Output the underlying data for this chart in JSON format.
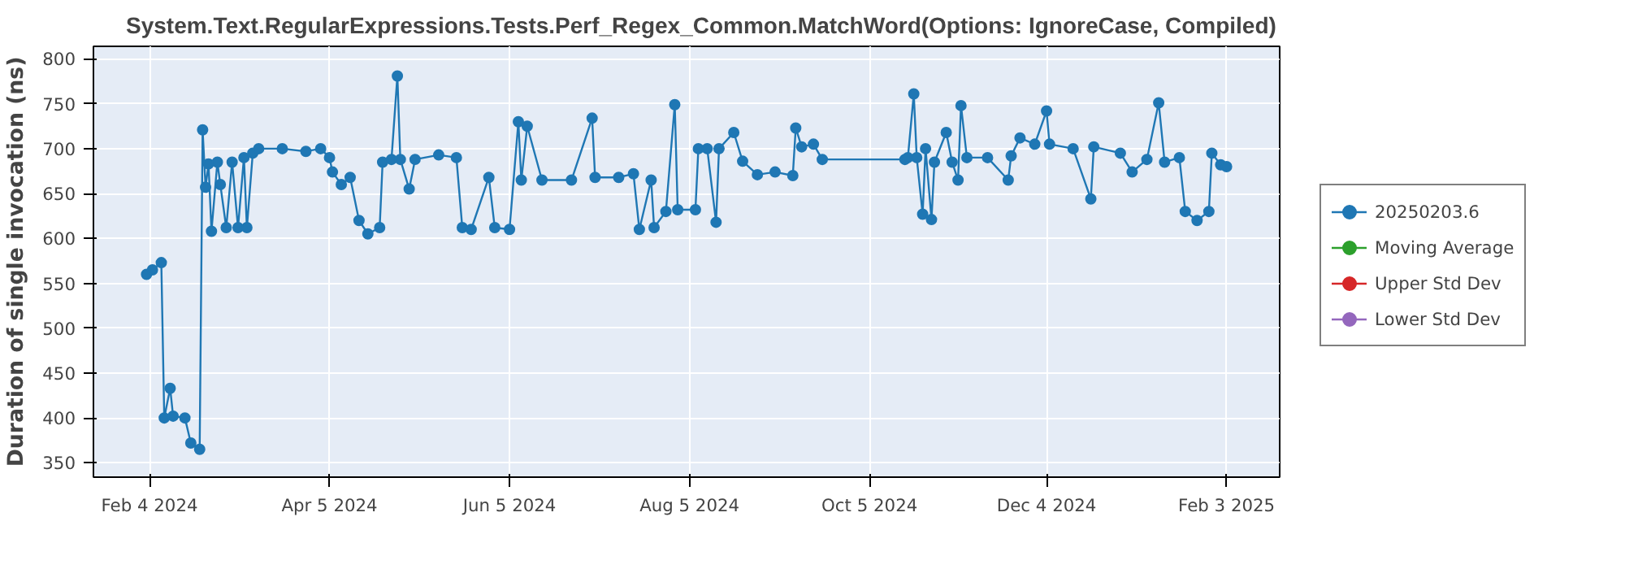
{
  "chart_data": {
    "type": "line",
    "title": "System.Text.RegularExpressions.Tests.Perf_Regex_Common.MatchWord(Options: IgnoreCase, Compiled)",
    "ylabel": "Duration of single invocation (ns)",
    "x": [
      "2024-02-03",
      "2024-02-05",
      "2024-02-08",
      "2024-02-09",
      "2024-02-11",
      "2024-02-12",
      "2024-02-16",
      "2024-02-18",
      "2024-02-21",
      "2024-02-22",
      "2024-02-23",
      "2024-02-24",
      "2024-02-25",
      "2024-02-27",
      "2024-02-28",
      "2024-03-01",
      "2024-03-03",
      "2024-03-05",
      "2024-03-07",
      "2024-03-08",
      "2024-03-10",
      "2024-03-12",
      "2024-03-20",
      "2024-03-28",
      "2024-04-02",
      "2024-04-05",
      "2024-04-06",
      "2024-04-09",
      "2024-04-12",
      "2024-04-15",
      "2024-04-18",
      "2024-04-22",
      "2024-04-23",
      "2024-04-26",
      "2024-04-28",
      "2024-04-29",
      "2024-05-02",
      "2024-05-04",
      "2024-05-12",
      "2024-05-18",
      "2024-05-20",
      "2024-05-23",
      "2024-05-29",
      "2024-05-31",
      "2024-06-05",
      "2024-06-08",
      "2024-06-09",
      "2024-06-11",
      "2024-06-16",
      "2024-06-26",
      "2024-07-03",
      "2024-07-04",
      "2024-07-12",
      "2024-07-17",
      "2024-07-19",
      "2024-07-23",
      "2024-07-24",
      "2024-07-28",
      "2024-07-31",
      "2024-08-01",
      "2024-08-07",
      "2024-08-08",
      "2024-08-11",
      "2024-08-14",
      "2024-08-15",
      "2024-08-20",
      "2024-08-23",
      "2024-08-28",
      "2024-09-03",
      "2024-09-09",
      "2024-09-10",
      "2024-09-12",
      "2024-09-16",
      "2024-09-19",
      "2024-10-17",
      "2024-10-18",
      "2024-10-20",
      "2024-10-21",
      "2024-10-23",
      "2024-10-24",
      "2024-10-26",
      "2024-10-27",
      "2024-10-31",
      "2024-11-02",
      "2024-11-04",
      "2024-11-05",
      "2024-11-07",
      "2024-11-14",
      "2024-11-21",
      "2024-11-22",
      "2024-11-25",
      "2024-11-30",
      "2024-12-04",
      "2024-12-05",
      "2024-12-13",
      "2024-12-19",
      "2024-12-20",
      "2024-12-29",
      "2025-01-02",
      "2025-01-07",
      "2025-01-11",
      "2025-01-13",
      "2025-01-18",
      "2025-01-20",
      "2025-01-24",
      "2025-01-28",
      "2025-01-29",
      "2025-02-01",
      "2025-02-03"
    ],
    "series": [
      {
        "name": "20250203.6",
        "color": "#1f77b4",
        "values": [
          560,
          565,
          573,
          400,
          433,
          402,
          400,
          372,
          365,
          721,
          657,
          683,
          608,
          685,
          660,
          612,
          685,
          612,
          690,
          612,
          695,
          700,
          700,
          697,
          700,
          690,
          674,
          660,
          668,
          620,
          605,
          612,
          685,
          688,
          781,
          688,
          655,
          688,
          693,
          690,
          612,
          610,
          668,
          612,
          610,
          730,
          665,
          725,
          665,
          665,
          734,
          668,
          668,
          672,
          610,
          665,
          612,
          630,
          749,
          632,
          632,
          700,
          700,
          618,
          700,
          718,
          686,
          671,
          674,
          670,
          723,
          702,
          705,
          688,
          688,
          690,
          761,
          690,
          627,
          700,
          621,
          685,
          718,
          685,
          665,
          748,
          690,
          690,
          665,
          692,
          712,
          705,
          742,
          705,
          700,
          644,
          702,
          695,
          674,
          688,
          751,
          685,
          690,
          630,
          620,
          630,
          695,
          682,
          680
        ]
      },
      {
        "name": "Moving Average",
        "color": "#2ca02c",
        "values": [
          null,
          null,
          null,
          null,
          null,
          null,
          null,
          null,
          null,
          null,
          null,
          null,
          null,
          null,
          null,
          null,
          null,
          null,
          null,
          null,
          null,
          null,
          null,
          null,
          null,
          null,
          null,
          null,
          null,
          null,
          null,
          null,
          null,
          null,
          null,
          null,
          null,
          null,
          null,
          null,
          null,
          null,
          null,
          null,
          null,
          null,
          null,
          null,
          null,
          null,
          null,
          null,
          null,
          null,
          null,
          null,
          null,
          null,
          null,
          null,
          null,
          null,
          null,
          null,
          null,
          null,
          null,
          null,
          null,
          null,
          null,
          null,
          null,
          null,
          null,
          null,
          null,
          null,
          null,
          null,
          null,
          null,
          null,
          null,
          null,
          null,
          null,
          null,
          null,
          null,
          null,
          null,
          null,
          null,
          null,
          null,
          null,
          null,
          null,
          null,
          null,
          null,
          null,
          null,
          null,
          null,
          null,
          null,
          null
        ]
      },
      {
        "name": "Upper Std Dev",
        "color": "#d62728",
        "values": [
          null,
          null,
          null,
          null,
          null,
          null,
          null,
          null,
          null,
          null,
          null,
          null,
          null,
          null,
          null,
          null,
          null,
          null,
          null,
          null,
          null,
          null,
          null,
          null,
          null,
          null,
          null,
          null,
          null,
          null,
          null,
          null,
          null,
          null,
          null,
          null,
          null,
          null,
          null,
          null,
          null,
          null,
          null,
          null,
          null,
          null,
          null,
          null,
          null,
          null,
          null,
          null,
          null,
          null,
          null,
          null,
          null,
          null,
          null,
          null,
          null,
          null,
          null,
          null,
          null,
          null,
          null,
          null,
          null,
          null,
          null,
          null,
          null,
          null,
          null,
          null,
          null,
          null,
          null,
          null,
          null,
          null,
          null,
          null,
          null,
          null,
          null,
          null,
          null,
          null,
          null,
          null,
          null,
          null,
          null,
          null,
          null,
          null,
          null,
          null,
          null,
          null,
          null,
          null,
          null,
          null,
          null,
          null,
          null
        ]
      },
      {
        "name": "Lower Std Dev",
        "color": "#9467bd",
        "values": [
          null,
          null,
          null,
          null,
          null,
          null,
          null,
          null,
          null,
          null,
          null,
          null,
          null,
          null,
          null,
          null,
          null,
          null,
          null,
          null,
          null,
          null,
          null,
          null,
          null,
          null,
          null,
          null,
          null,
          null,
          null,
          null,
          null,
          null,
          null,
          null,
          null,
          null,
          null,
          null,
          null,
          null,
          null,
          null,
          null,
          null,
          null,
          null,
          null,
          null,
          null,
          null,
          null,
          null,
          null,
          null,
          null,
          null,
          null,
          null,
          null,
          null,
          null,
          null,
          null,
          null,
          null,
          null,
          null,
          null,
          null,
          null,
          null,
          null,
          null,
          null,
          null,
          null,
          null,
          null,
          null,
          null,
          null,
          null,
          null,
          null,
          null,
          null,
          null,
          null,
          null,
          null,
          null,
          null,
          null,
          null,
          null,
          null,
          null,
          null,
          null,
          null,
          null,
          null,
          null,
          null,
          null,
          null,
          null
        ]
      }
    ],
    "xlim": [
      "2024-01-16",
      "2025-02-21"
    ],
    "xticks": [
      {
        "value": "2024-02-04",
        "label": "Feb 4 2024"
      },
      {
        "value": "2024-04-05",
        "label": "Apr 5 2024"
      },
      {
        "value": "2024-06-05",
        "label": "Jun 5 2024"
      },
      {
        "value": "2024-08-05",
        "label": "Aug 5 2024"
      },
      {
        "value": "2024-10-05",
        "label": "Oct 5 2024"
      },
      {
        "value": "2024-12-04",
        "label": "Dec 4 2024"
      },
      {
        "value": "2025-02-03",
        "label": "Feb 3 2025"
      }
    ],
    "ylim": [
      334,
      814
    ],
    "yticks": [
      350,
      400,
      450,
      500,
      550,
      600,
      650,
      700,
      750,
      800
    ],
    "grid": true,
    "legend": "right",
    "marker": "circle",
    "line_style": "solid"
  }
}
